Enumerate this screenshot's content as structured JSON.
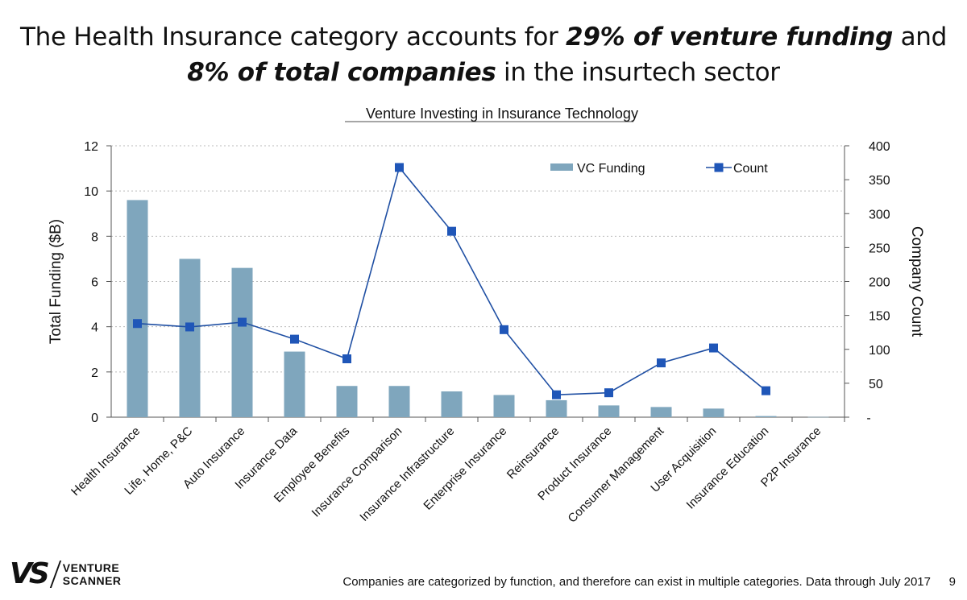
{
  "headline": {
    "part1": "The Health Insurance category accounts for ",
    "emph1": "29% of venture funding",
    "part2": " and ",
    "emph2": "8% of total companies",
    "part3": " in the insurtech sector"
  },
  "chart_data": {
    "type": "bar+line",
    "title": "Venture Investing in Insurance Technology",
    "categories": [
      "Health Insurance",
      "Life, Home, P&C",
      "Auto Insurance",
      "Insurance Data",
      "Employee Benefits",
      "Insurance Comparison",
      "Insurance Infrastructure",
      "Enterprise Insurance",
      "Reinsurance",
      "Product Insurance",
      "Consumer Management",
      "User Acquisition",
      "Insurance Education",
      "P2P Insurance"
    ],
    "series": [
      {
        "name": "VC Funding",
        "type": "bar",
        "axis": "left",
        "values": [
          9.6,
          7.0,
          6.6,
          2.9,
          1.38,
          1.38,
          1.14,
          0.98,
          0.75,
          0.52,
          0.45,
          0.38,
          0.05,
          0.01
        ]
      },
      {
        "name": "Count",
        "type": "line",
        "axis": "right",
        "values": [
          138,
          133,
          140,
          115,
          86,
          368,
          274,
          129,
          33,
          36,
          80,
          102,
          39,
          null
        ]
      }
    ],
    "ylabel": "Total Funding ($B)",
    "y2label": "Company Count",
    "ylim": [
      0,
      12
    ],
    "y2lim": [
      0,
      400
    ],
    "yticks": [
      "0",
      "2",
      "4",
      "6",
      "8",
      "10",
      "12"
    ],
    "y2ticks": [
      "-",
      "50",
      "100",
      "150",
      "200",
      "250",
      "300",
      "350",
      "400"
    ],
    "legend": [
      "VC Funding",
      "Count"
    ],
    "legend_position": "top-right",
    "colors": {
      "bar": "#7fa6bd",
      "line": "#1f4fa3",
      "marker": "#1f56b8",
      "grid": "#bbbbbb"
    }
  },
  "footer": {
    "logo_mark": "VS",
    "logo_line1": "VENTURE",
    "logo_line2": "SCANNER",
    "note": "Companies are categorized by function, and therefore can exist in multiple categories. Data through July 2017",
    "page_number": "9"
  }
}
